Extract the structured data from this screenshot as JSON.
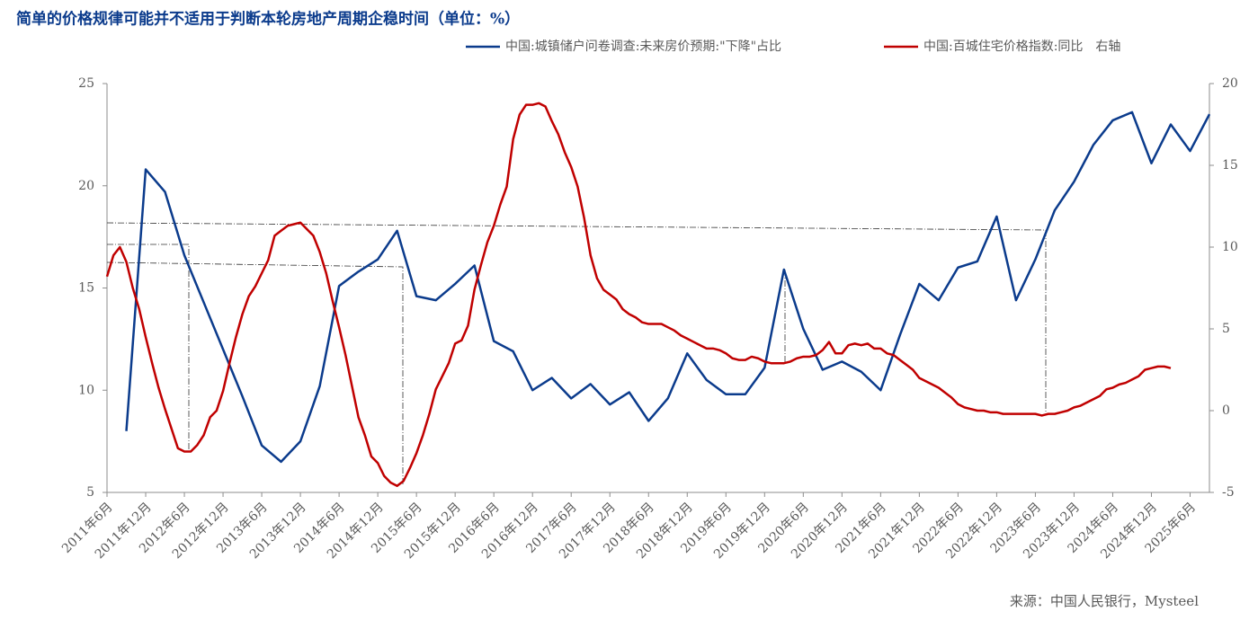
{
  "chart_data": {
    "type": "line",
    "title": "简单的价格规律可能并不适用于判断本轮房地产周期企稳时间（单位：%）",
    "source": "来源：中国人民银行，Mysteel",
    "xlim": [
      "2011-06",
      "2025-09"
    ],
    "xticks": [
      {
        "value": "2011-06",
        "label": "2011年6月"
      },
      {
        "value": "2011-12",
        "label": "2011年12月"
      },
      {
        "value": "2012-06",
        "label": "2012年6月"
      },
      {
        "value": "2012-12",
        "label": "2012年12月"
      },
      {
        "value": "2013-06",
        "label": "2013年6月"
      },
      {
        "value": "2013-12",
        "label": "2013年12月"
      },
      {
        "value": "2014-06",
        "label": "2014年6月"
      },
      {
        "value": "2014-12",
        "label": "2014年12月"
      },
      {
        "value": "2015-06",
        "label": "2015年6月"
      },
      {
        "value": "2015-12",
        "label": "2015年12月"
      },
      {
        "value": "2016-06",
        "label": "2016年6月"
      },
      {
        "value": "2016-12",
        "label": "2016年12月"
      },
      {
        "value": "2017-06",
        "label": "2017年6月"
      },
      {
        "value": "2017-12",
        "label": "2017年12月"
      },
      {
        "value": "2018-06",
        "label": "2018年6月"
      },
      {
        "value": "2018-12",
        "label": "2018年12月"
      },
      {
        "value": "2019-06",
        "label": "2019年6月"
      },
      {
        "value": "2019-12",
        "label": "2019年12月"
      },
      {
        "value": "2020-06",
        "label": "2020年6月"
      },
      {
        "value": "2020-12",
        "label": "2020年12月"
      },
      {
        "value": "2021-06",
        "label": "2021年6月"
      },
      {
        "value": "2021-12",
        "label": "2021年12月"
      },
      {
        "value": "2022-06",
        "label": "2022年6月"
      },
      {
        "value": "2022-12",
        "label": "2022年12月"
      },
      {
        "value": "2023-06",
        "label": "2023年6月"
      },
      {
        "value": "2023-12",
        "label": "2023年12月"
      },
      {
        "value": "2024-06",
        "label": "2024年6月"
      },
      {
        "value": "2024-12",
        "label": "2024年12月"
      },
      {
        "value": "2025-06",
        "label": "2025年6月"
      }
    ],
    "ylim": [
      5,
      25
    ],
    "yticks": [
      5,
      10,
      15,
      20,
      25
    ],
    "y2lim": [
      -5,
      20
    ],
    "y2ticks": [
      -5,
      0,
      5,
      10,
      15,
      20
    ],
    "series": [
      {
        "name": "中国:城镇储户问卷调查:未来房价预期:\"下降\"占比",
        "color": "#0b3b8c",
        "x": [
          "2011-09",
          "2011-12",
          "2012-03",
          "2012-06",
          "2012-09",
          "2012-12",
          "2013-03",
          "2013-06",
          "2013-09",
          "2013-12",
          "2014-03",
          "2014-06",
          "2014-09",
          "2014-12",
          "2015-03",
          "2015-06",
          "2015-09",
          "2015-12",
          "2016-03",
          "2016-06",
          "2016-09",
          "2016-12",
          "2017-03",
          "2017-06",
          "2017-09",
          "2017-12",
          "2018-03",
          "2018-06",
          "2018-09",
          "2018-12",
          "2019-03",
          "2019-06",
          "2019-09",
          "2019-12",
          "2020-03",
          "2020-06",
          "2020-09",
          "2020-12",
          "2021-03",
          "2021-06",
          "2021-09",
          "2021-12",
          "2022-03",
          "2022-06",
          "2022-09",
          "2022-12",
          "2023-03",
          "2023-06",
          "2023-09",
          "2023-12",
          "2024-03",
          "2024-06",
          "2024-09",
          "2024-12",
          "2025-03",
          "2025-06",
          "2025-09"
        ],
        "values": [
          8.0,
          20.8,
          19.7,
          16.6,
          14.3,
          12.0,
          9.7,
          7.3,
          6.5,
          7.5,
          10.2,
          15.1,
          15.8,
          16.4,
          17.8,
          14.6,
          14.4,
          15.2,
          16.1,
          12.4,
          11.9,
          10.0,
          10.6,
          9.6,
          10.3,
          9.3,
          9.9,
          8.5,
          9.6,
          11.8,
          10.5,
          9.8,
          9.8,
          11.1,
          15.9,
          13.0,
          11.0,
          11.4,
          10.9,
          10.0,
          12.7,
          15.2,
          14.4,
          16.0,
          16.3,
          18.5,
          14.4,
          16.4,
          18.8,
          20.2,
          22.0,
          23.2,
          23.6,
          21.1,
          23.0,
          21.7,
          23.5
        ]
      },
      {
        "name": "中国:百城住宅价格指数:同比　右轴",
        "color": "#c00000",
        "axis": "y2",
        "x": [
          "2011-06",
          "2011-07",
          "2011-08",
          "2011-09",
          "2011-10",
          "2011-11",
          "2011-12",
          "2012-01",
          "2012-02",
          "2012-03",
          "2012-04",
          "2012-05",
          "2012-06",
          "2012-07",
          "2012-08",
          "2012-09",
          "2012-10",
          "2012-11",
          "2012-12",
          "2013-01",
          "2013-02",
          "2013-03",
          "2013-04",
          "2013-05",
          "2013-06",
          "2013-07",
          "2013-08",
          "2013-09",
          "2013-10",
          "2013-11",
          "2013-12",
          "2014-01",
          "2014-02",
          "2014-03",
          "2014-04",
          "2014-05",
          "2014-06",
          "2014-07",
          "2014-08",
          "2014-09",
          "2014-10",
          "2014-11",
          "2014-12",
          "2015-01",
          "2015-02",
          "2015-03",
          "2015-04",
          "2015-05",
          "2015-06",
          "2015-07",
          "2015-08",
          "2015-09",
          "2015-10",
          "2015-11",
          "2015-12",
          "2016-01",
          "2016-02",
          "2016-03",
          "2016-04",
          "2016-05",
          "2016-06",
          "2016-07",
          "2016-08",
          "2016-09",
          "2016-10",
          "2016-11",
          "2016-12",
          "2017-01",
          "2017-02",
          "2017-03",
          "2017-04",
          "2017-05",
          "2017-06",
          "2017-07",
          "2017-08",
          "2017-09",
          "2017-10",
          "2017-11",
          "2017-12",
          "2018-01",
          "2018-02",
          "2018-03",
          "2018-04",
          "2018-05",
          "2018-06",
          "2018-07",
          "2018-08",
          "2018-09",
          "2018-10",
          "2018-11",
          "2018-12",
          "2019-01",
          "2019-02",
          "2019-03",
          "2019-04",
          "2019-05",
          "2019-06",
          "2019-07",
          "2019-08",
          "2019-09",
          "2019-10",
          "2019-11",
          "2019-12",
          "2020-01",
          "2020-02",
          "2020-03",
          "2020-04",
          "2020-05",
          "2020-06",
          "2020-07",
          "2020-08",
          "2020-09",
          "2020-10",
          "2020-11",
          "2020-12",
          "2021-01",
          "2021-02",
          "2021-03",
          "2021-04",
          "2021-05",
          "2021-06",
          "2021-07",
          "2021-08",
          "2021-09",
          "2021-10",
          "2021-11",
          "2021-12",
          "2022-01",
          "2022-02",
          "2022-03",
          "2022-04",
          "2022-05",
          "2022-06",
          "2022-07",
          "2022-08",
          "2022-09",
          "2022-10",
          "2022-11",
          "2022-12",
          "2023-01",
          "2023-02",
          "2023-03",
          "2023-04",
          "2023-05",
          "2023-06",
          "2023-07",
          "2023-08",
          "2023-09",
          "2023-10",
          "2023-11",
          "2023-12",
          "2024-01",
          "2024-02",
          "2024-03",
          "2024-04",
          "2024-05",
          "2024-06",
          "2024-07",
          "2024-08",
          "2024-09",
          "2024-10",
          "2024-11",
          "2024-12",
          "2025-01",
          "2025-02",
          "2025-03"
        ],
        "values": [
          8.2,
          9.5,
          10.0,
          9.1,
          7.5,
          6.2,
          4.5,
          2.9,
          1.4,
          0.1,
          -1.1,
          -2.3,
          -2.5,
          -2.5,
          -2.1,
          -1.5,
          -0.4,
          0.0,
          1.2,
          2.9,
          4.5,
          5.9,
          7.0,
          7.6,
          8.4,
          9.2,
          10.7,
          11.0,
          11.3,
          11.4,
          11.5,
          11.1,
          10.7,
          9.7,
          8.4,
          6.7,
          5.1,
          3.4,
          1.5,
          -0.4,
          -1.5,
          -2.8,
          -3.2,
          -4.0,
          -4.4,
          -4.6,
          -4.3,
          -3.5,
          -2.6,
          -1.5,
          -0.2,
          1.3,
          2.1,
          2.9,
          4.1,
          4.3,
          5.2,
          7.4,
          8.9,
          10.3,
          11.3,
          12.6,
          13.7,
          16.6,
          18.1,
          18.7,
          18.7,
          18.8,
          18.6,
          17.7,
          16.9,
          15.8,
          14.9,
          13.7,
          11.8,
          9.5,
          8.1,
          7.4,
          7.1,
          6.8,
          6.2,
          5.9,
          5.7,
          5.4,
          5.3,
          5.3,
          5.3,
          5.1,
          4.9,
          4.6,
          4.4,
          4.2,
          4.0,
          3.8,
          3.8,
          3.7,
          3.5,
          3.2,
          3.1,
          3.1,
          3.3,
          3.2,
          3.0,
          2.9,
          2.9,
          2.9,
          3.0,
          3.2,
          3.3,
          3.3,
          3.4,
          3.7,
          4.2,
          3.5,
          3.5,
          4.0,
          4.1,
          4.0,
          4.1,
          3.8,
          3.8,
          3.5,
          3.4,
          3.1,
          2.8,
          2.5,
          2.0,
          1.8,
          1.6,
          1.4,
          1.1,
          0.8,
          0.4,
          0.2,
          0.1,
          0.0,
          0.0,
          -0.1,
          -0.1,
          -0.2,
          -0.2,
          -0.2,
          -0.2,
          -0.2,
          -0.2,
          -0.3,
          -0.2,
          -0.2,
          -0.1,
          0.0,
          0.2,
          0.3,
          0.5,
          0.7,
          0.9,
          1.3,
          1.4,
          1.6,
          1.7,
          1.9,
          2.1,
          2.5,
          2.6,
          2.7,
          2.7,
          2.6
        ]
      }
    ]
  }
}
